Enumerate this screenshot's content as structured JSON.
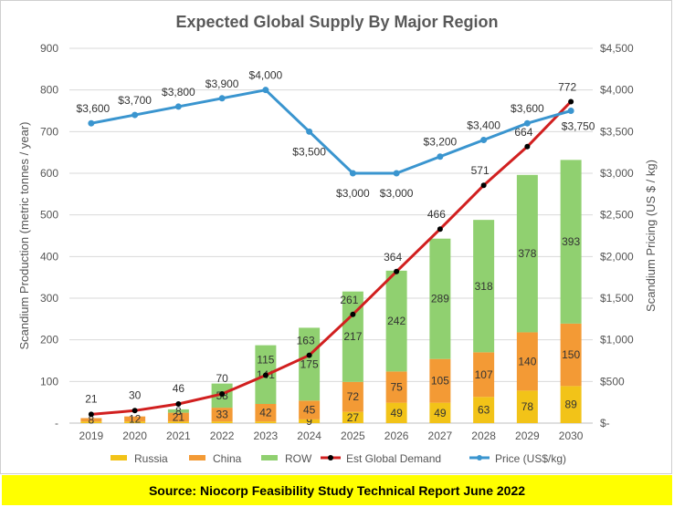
{
  "chart_data": {
    "type": "bar",
    "title": "Expected Global Supply By Major Region",
    "categories": [
      "2019",
      "2020",
      "2021",
      "2022",
      "2023",
      "2024",
      "2025",
      "2026",
      "2027",
      "2028",
      "2029",
      "2030"
    ],
    "ylabel": "Scandium Production (metric tonnes / year)",
    "y2label": "Scandium Pricing (US $ / kg)",
    "ylim": [
      0,
      900
    ],
    "y2lim": [
      0,
      4500
    ],
    "y_ticks": [
      "-",
      "100",
      "200",
      "300",
      "400",
      "500",
      "600",
      "700",
      "800",
      "900"
    ],
    "y2_ticks": [
      "$-",
      "$500",
      "$1,000",
      "$1,500",
      "$2,000",
      "$2,500",
      "$3,000",
      "$3,500",
      "$4,000",
      "$4,500"
    ],
    "series": [
      {
        "name": "Russia",
        "kind": "bar",
        "color": "#f2c318",
        "values": [
          4,
          4,
          4,
          4,
          4,
          9,
          27,
          49,
          49,
          63,
          78,
          89
        ],
        "labels": [
          "",
          "",
          "",
          "",
          "",
          "9",
          "27",
          "49",
          "49",
          "63",
          "78",
          "89"
        ]
      },
      {
        "name": "China",
        "kind": "bar",
        "color": "#f39a35",
        "values": [
          8,
          12,
          21,
          33,
          42,
          45,
          72,
          75,
          105,
          107,
          140,
          150
        ],
        "labels": [
          "8",
          "12",
          "21",
          "33",
          "42",
          "45",
          "72",
          "75",
          "105",
          "107",
          "140",
          "150"
        ]
      },
      {
        "name": "ROW",
        "kind": "bar",
        "color": "#90d070",
        "values": [
          0,
          0,
          8,
          58,
          141,
          175,
          217,
          242,
          289,
          318,
          378,
          393
        ],
        "labels": [
          "",
          "",
          "8",
          "58",
          "141",
          "175",
          "217",
          "242",
          "289",
          "318",
          "378",
          "393"
        ]
      },
      {
        "name": "Est Global Demand",
        "kind": "line",
        "color": "#d11f1f",
        "values": [
          21,
          30,
          46,
          70,
          115,
          163,
          261,
          364,
          466,
          571,
          664,
          772
        ],
        "labels": [
          "21",
          "30",
          "46",
          "70",
          "115",
          "163",
          "261",
          "364",
          "466",
          "571",
          "664",
          "772"
        ]
      },
      {
        "name": "Price (US$/kg)",
        "kind": "line",
        "axis": "right",
        "color": "#3a95cf",
        "values": [
          3600,
          3700,
          3800,
          3900,
          4000,
          3500,
          3000,
          3000,
          3200,
          3400,
          3600,
          3750
        ],
        "labels": [
          "$3,600",
          "$3,700",
          "$3,800",
          "$3,900",
          "$4,000",
          "$3,500",
          "$3,000",
          "$3,000",
          "$3,200",
          "$3,400",
          "$3,600",
          "$3,750"
        ]
      }
    ]
  },
  "source": "Source: Niocorp Feasibility Study Technical Report June 2022"
}
